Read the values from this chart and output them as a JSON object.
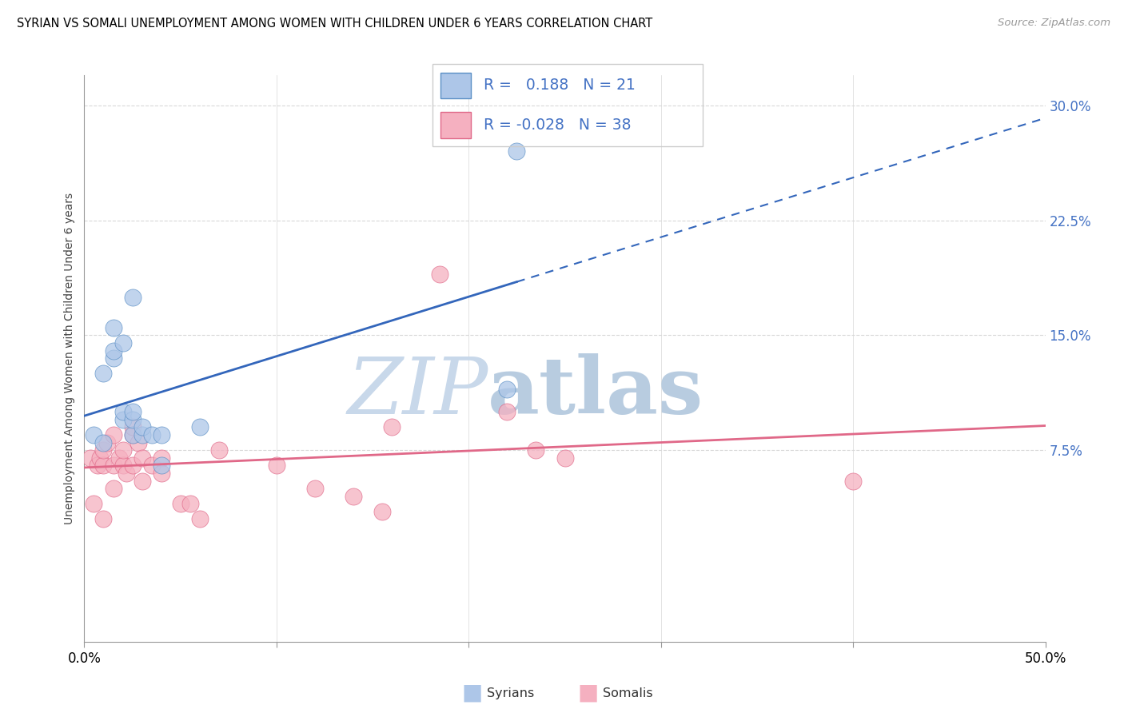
{
  "title": "SYRIAN VS SOMALI UNEMPLOYMENT AMONG WOMEN WITH CHILDREN UNDER 6 YEARS CORRELATION CHART",
  "source": "Source: ZipAtlas.com",
  "ylabel": "Unemployment Among Women with Children Under 6 years",
  "xlim": [
    0.0,
    0.5
  ],
  "ylim": [
    -0.05,
    0.32
  ],
  "syrian_R": 0.188,
  "syrian_N": 21,
  "somali_R": -0.028,
  "somali_N": 38,
  "syrian_fill": "#adc6e8",
  "somali_fill": "#f5b0c0",
  "syrian_edge": "#5b8fc5",
  "somali_edge": "#e06888",
  "syrian_line": "#3366bb",
  "somali_line": "#e06888",
  "legend_text_color": "#4472c4",
  "watermark_zip_color": "#c8d8ea",
  "watermark_atlas_color": "#b8cce0",
  "bg": "#ffffff",
  "grid_color": "#d8d8d8",
  "syrians_x": [
    0.005,
    0.01,
    0.01,
    0.015,
    0.015,
    0.015,
    0.02,
    0.02,
    0.02,
    0.025,
    0.025,
    0.025,
    0.025,
    0.03,
    0.03,
    0.035,
    0.04,
    0.04,
    0.06,
    0.22,
    0.225
  ],
  "syrians_y": [
    0.085,
    0.08,
    0.125,
    0.135,
    0.14,
    0.155,
    0.095,
    0.1,
    0.145,
    0.085,
    0.095,
    0.1,
    0.175,
    0.085,
    0.09,
    0.085,
    0.085,
    0.065,
    0.09,
    0.115,
    0.27
  ],
  "somalis_x": [
    0.003,
    0.005,
    0.007,
    0.008,
    0.01,
    0.01,
    0.01,
    0.012,
    0.015,
    0.015,
    0.015,
    0.018,
    0.02,
    0.02,
    0.022,
    0.025,
    0.025,
    0.025,
    0.028,
    0.03,
    0.03,
    0.035,
    0.04,
    0.04,
    0.05,
    0.055,
    0.06,
    0.07,
    0.1,
    0.12,
    0.14,
    0.155,
    0.16,
    0.185,
    0.22,
    0.235,
    0.25,
    0.4
  ],
  "somalis_y": [
    0.07,
    0.04,
    0.065,
    0.07,
    0.03,
    0.065,
    0.075,
    0.08,
    0.05,
    0.065,
    0.085,
    0.07,
    0.065,
    0.075,
    0.06,
    0.065,
    0.085,
    0.09,
    0.08,
    0.055,
    0.07,
    0.065,
    0.07,
    0.06,
    0.04,
    0.04,
    0.03,
    0.075,
    0.065,
    0.05,
    0.045,
    0.035,
    0.09,
    0.19,
    0.1,
    0.075,
    0.07,
    0.055
  ]
}
